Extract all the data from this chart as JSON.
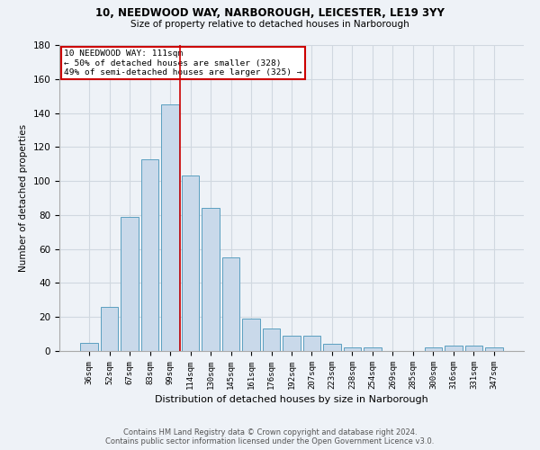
{
  "title1": "10, NEEDWOOD WAY, NARBOROUGH, LEICESTER, LE19 3YY",
  "title2": "Size of property relative to detached houses in Narborough",
  "xlabel": "Distribution of detached houses by size in Narborough",
  "ylabel": "Number of detached properties",
  "bar_labels": [
    "36sqm",
    "52sqm",
    "67sqm",
    "83sqm",
    "99sqm",
    "114sqm",
    "130sqm",
    "145sqm",
    "161sqm",
    "176sqm",
    "192sqm",
    "207sqm",
    "223sqm",
    "238sqm",
    "254sqm",
    "269sqm",
    "285sqm",
    "300sqm",
    "316sqm",
    "331sqm",
    "347sqm"
  ],
  "bar_values": [
    5,
    26,
    79,
    113,
    145,
    103,
    84,
    55,
    19,
    13,
    9,
    9,
    4,
    2,
    2,
    0,
    0,
    2,
    3,
    3,
    2
  ],
  "bar_color": "#c9d9ea",
  "bar_edge_color": "#5b9fc0",
  "grid_color": "#d0d8e0",
  "vline_color": "#cc0000",
  "vline_x_index": 4,
  "annotation_line1": "10 NEEDWOOD WAY: 111sqm",
  "annotation_line2": "← 50% of detached houses are smaller (328)",
  "annotation_line3": "49% of semi-detached houses are larger (325) →",
  "annotation_box_color": "white",
  "annotation_box_edge": "#cc0000",
  "ylim": [
    0,
    180
  ],
  "yticks": [
    0,
    20,
    40,
    60,
    80,
    100,
    120,
    140,
    160,
    180
  ],
  "footer1": "Contains HM Land Registry data © Crown copyright and database right 2024.",
  "footer2": "Contains public sector information licensed under the Open Government Licence v3.0.",
  "bg_color": "#eef2f7"
}
